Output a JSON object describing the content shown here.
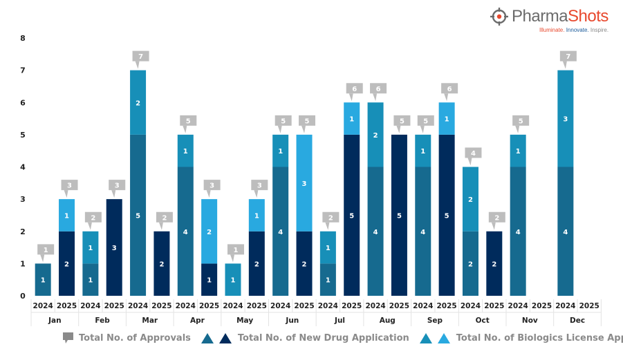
{
  "brand": {
    "name_part1": "Pharma",
    "name_part2": "Shots",
    "tagline_part1": "Illuminate.",
    "tagline_part2": "Innovate.",
    "tagline_part3": "Inspire.",
    "icon": "crosshair-target-icon"
  },
  "colors": {
    "nda_2024": "#166a8f",
    "nda_2025": "#002b5c",
    "bla_2024": "#178fb8",
    "bla_2025": "#29a9e0",
    "total_callout": "#bdbdbd",
    "axis_text": "#222222",
    "legend_text": "#8a8a8a",
    "grid_line": "#e3e3e3"
  },
  "legend": [
    {
      "label": "Total No. of Approvals",
      "icon": "callout-icon",
      "swatches": [
        "#8a8a8a"
      ]
    },
    {
      "label": "Total No. of New Drug Application",
      "icon": "triangle-icon",
      "swatches": [
        "#166a8f",
        "#002b5c"
      ]
    },
    {
      "label": "Total No. of Biologics License Application",
      "icon": "triangle-icon",
      "swatches": [
        "#178fb8",
        "#29a9e0"
      ]
    }
  ],
  "chart_data": {
    "type": "bar",
    "stacked": true,
    "title": "",
    "xlabel": "",
    "ylabel": "",
    "ylim": [
      0,
      8
    ],
    "yticks": [
      0,
      1,
      2,
      3,
      4,
      5,
      6,
      7,
      8
    ],
    "grid": false,
    "legend_position": "bottom",
    "months": [
      "Jan",
      "Feb",
      "Mar",
      "Apr",
      "May",
      "Jun",
      "Jul",
      "Aug",
      "Sep",
      "Oct",
      "Nov",
      "Dec"
    ],
    "years": [
      "2024",
      "2025"
    ],
    "series": [
      {
        "name": "Total No. of New Drug Application",
        "key": "nda"
      },
      {
        "name": "Total No. of Biologics License Application",
        "key": "bla"
      }
    ],
    "bars": [
      {
        "month": "Jan",
        "year": "2024",
        "nda": 1,
        "bla": 0,
        "total": 1
      },
      {
        "month": "Jan",
        "year": "2025",
        "nda": 2,
        "bla": 1,
        "total": 3
      },
      {
        "month": "Feb",
        "year": "2024",
        "nda": 1,
        "bla": 1,
        "total": 2
      },
      {
        "month": "Feb",
        "year": "2025",
        "nda": 3,
        "bla": 0,
        "total": 3
      },
      {
        "month": "Mar",
        "year": "2024",
        "nda": 5,
        "bla": 2,
        "total": 7
      },
      {
        "month": "Mar",
        "year": "2025",
        "nda": 2,
        "bla": 0,
        "total": 2
      },
      {
        "month": "Apr",
        "year": "2024",
        "nda": 4,
        "bla": 1,
        "total": 5
      },
      {
        "month": "Apr",
        "year": "2025",
        "nda": 1,
        "bla": 2,
        "total": 3
      },
      {
        "month": "May",
        "year": "2024",
        "nda": 0,
        "bla": 1,
        "total": 1
      },
      {
        "month": "May",
        "year": "2025",
        "nda": 2,
        "bla": 1,
        "total": 3
      },
      {
        "month": "Jun",
        "year": "2024",
        "nda": 4,
        "bla": 1,
        "total": 5
      },
      {
        "month": "Jun",
        "year": "2025",
        "nda": 2,
        "bla": 3,
        "total": 5
      },
      {
        "month": "Jul",
        "year": "2024",
        "nda": 1,
        "bla": 1,
        "total": 2
      },
      {
        "month": "Jul",
        "year": "2025",
        "nda": 5,
        "bla": 1,
        "total": 6
      },
      {
        "month": "Aug",
        "year": "2024",
        "nda": 4,
        "bla": 2,
        "total": 6
      },
      {
        "month": "Aug",
        "year": "2025",
        "nda": 5,
        "bla": 0,
        "total": 5
      },
      {
        "month": "Sep",
        "year": "2024",
        "nda": 4,
        "bla": 1,
        "total": 5
      },
      {
        "month": "Sep",
        "year": "2025",
        "nda": 5,
        "bla": 1,
        "total": 6
      },
      {
        "month": "Oct",
        "year": "2024",
        "nda": 2,
        "bla": 2,
        "total": 4
      },
      {
        "month": "Oct",
        "year": "2025",
        "nda": 2,
        "bla": 0,
        "total": 2
      },
      {
        "month": "Nov",
        "year": "2024",
        "nda": 4,
        "bla": 1,
        "total": 5
      },
      {
        "month": "Nov",
        "year": "2025",
        "nda": 0,
        "bla": 0,
        "total": 0
      },
      {
        "month": "Dec",
        "year": "2024",
        "nda": 4,
        "bla": 3,
        "total": 7
      },
      {
        "month": "Dec",
        "year": "2025",
        "nda": 0,
        "bla": 0,
        "total": 0
      }
    ]
  }
}
